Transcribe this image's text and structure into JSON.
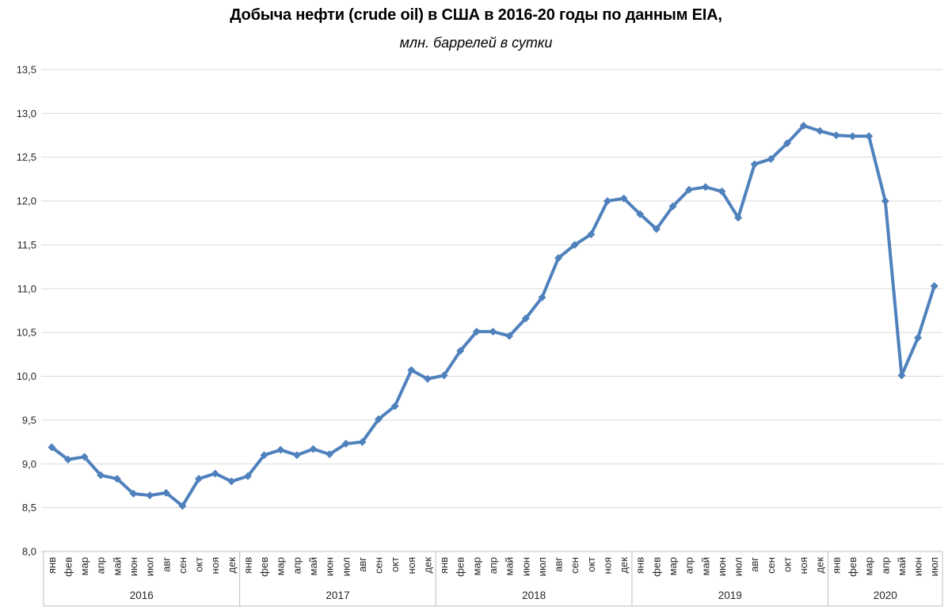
{
  "chart_data": {
    "type": "line",
    "title": "Добыча нефти (crude oil) в США в 2016-20 годы по данным EIA,",
    "subtitle": "млн. баррелей в сутки",
    "xlabel": "",
    "ylabel": "",
    "ylim": [
      8.0,
      13.5
    ],
    "ytick_step": 0.5,
    "ytick_labels": [
      "8,0",
      "8,5",
      "9,0",
      "9,5",
      "10,0",
      "10,5",
      "11,0",
      "11,5",
      "12,0",
      "12,5",
      "13,0",
      "13,5"
    ],
    "grid": true,
    "legend": "none",
    "line_color": "#4f81bd",
    "grid_color": "#d9d9d9",
    "axis_color": "#bfbfbf",
    "tick_text_color": "#262626",
    "marker": "diamond",
    "year_groups": [
      {
        "label": "2016",
        "months": [
          "янв",
          "фев",
          "мар",
          "апр",
          "май",
          "июн",
          "июл",
          "авг",
          "сен",
          "окт",
          "ноя",
          "дек"
        ]
      },
      {
        "label": "2017",
        "months": [
          "янв",
          "фев",
          "мар",
          "апр",
          "май",
          "июн",
          "июл",
          "авг",
          "сен",
          "окт",
          "ноя",
          "дек"
        ]
      },
      {
        "label": "2018",
        "months": [
          "янв",
          "фев",
          "мар",
          "апр",
          "май",
          "июн",
          "июл",
          "авг",
          "сен",
          "окт",
          "ноя",
          "дек"
        ]
      },
      {
        "label": "2019",
        "months": [
          "янв",
          "фев",
          "мар",
          "апр",
          "май",
          "июн",
          "июл",
          "авг",
          "сен",
          "окт",
          "ноя",
          "дек"
        ]
      },
      {
        "label": "2020",
        "months": [
          "янв",
          "фев",
          "мар",
          "апр",
          "май",
          "июн",
          "июл"
        ]
      }
    ],
    "values": [
      9.19,
      9.05,
      9.08,
      8.87,
      8.83,
      8.66,
      8.64,
      8.67,
      8.52,
      8.83,
      8.89,
      8.8,
      8.86,
      9.1,
      9.16,
      9.1,
      9.17,
      9.11,
      9.23,
      9.25,
      9.51,
      9.66,
      10.07,
      9.97,
      10.01,
      10.29,
      10.51,
      10.51,
      10.46,
      10.66,
      10.9,
      11.35,
      11.5,
      11.62,
      12.0,
      12.03,
      11.85,
      11.68,
      11.94,
      12.13,
      12.16,
      12.11,
      11.81,
      12.42,
      12.48,
      12.66,
      12.86,
      12.8,
      12.75,
      12.74,
      12.74,
      12.0,
      10.01,
      10.44,
      11.03
    ]
  }
}
